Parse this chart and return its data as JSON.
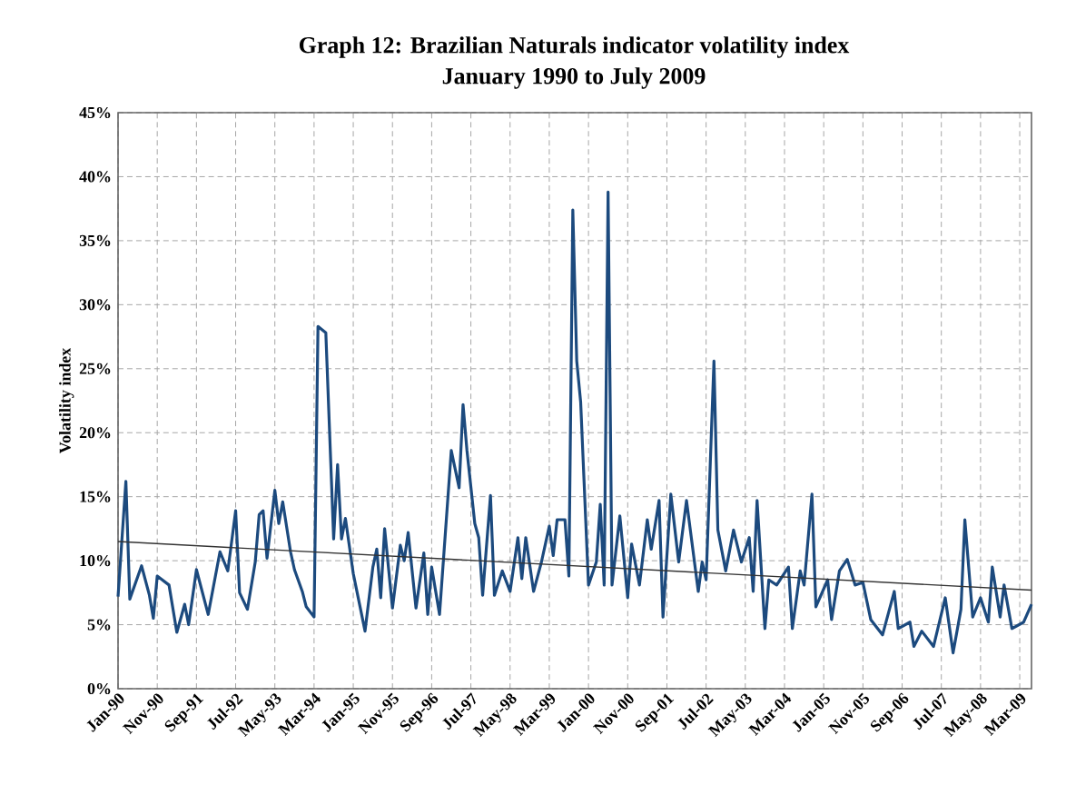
{
  "chart_data": {
    "type": "line",
    "title": "Graph 12: Brazilian Naturals indicator volatility index",
    "subtitle": "January 1990 to July 2009",
    "ylabel": "Volatility index",
    "xlim": [
      "1990-01",
      "2009-06"
    ],
    "ylim": [
      0,
      45
    ],
    "yticks": [
      {
        "value": 0,
        "label": "0%"
      },
      {
        "value": 5,
        "label": "5%"
      },
      {
        "value": 10,
        "label": "10%"
      },
      {
        "value": 15,
        "label": "15%"
      },
      {
        "value": 20,
        "label": "20%"
      },
      {
        "value": 25,
        "label": "25%"
      },
      {
        "value": 30,
        "label": "30%"
      },
      {
        "value": 35,
        "label": "35%"
      },
      {
        "value": 40,
        "label": "40%"
      },
      {
        "value": 45,
        "label": "45%"
      }
    ],
    "xticks": [
      {
        "value": "1990-01",
        "label": "Jan-90"
      },
      {
        "value": "1990-11",
        "label": "Nov-90"
      },
      {
        "value": "1991-09",
        "label": "Sep-91"
      },
      {
        "value": "1992-07",
        "label": "Jul-92"
      },
      {
        "value": "1993-05",
        "label": "May-93"
      },
      {
        "value": "1994-03",
        "label": "Mar-94"
      },
      {
        "value": "1995-01",
        "label": "Jan-95"
      },
      {
        "value": "1995-11",
        "label": "Nov-95"
      },
      {
        "value": "1996-09",
        "label": "Sep-96"
      },
      {
        "value": "1997-07",
        "label": "Jul-97"
      },
      {
        "value": "1998-05",
        "label": "May-98"
      },
      {
        "value": "1999-03",
        "label": "Mar-99"
      },
      {
        "value": "2000-01",
        "label": "Jan-00"
      },
      {
        "value": "2000-11",
        "label": "Nov-00"
      },
      {
        "value": "2001-09",
        "label": "Sep-01"
      },
      {
        "value": "2002-07",
        "label": "Jul-02"
      },
      {
        "value": "2003-05",
        "label": "May-03"
      },
      {
        "value": "2004-03",
        "label": "Mar-04"
      },
      {
        "value": "2005-01",
        "label": "Jan-05"
      },
      {
        "value": "2005-11",
        "label": "Nov-05"
      },
      {
        "value": "2006-09",
        "label": "Sep-06"
      },
      {
        "value": "2007-07",
        "label": "Jul-07"
      },
      {
        "value": "2008-05",
        "label": "May-08"
      },
      {
        "value": "2009-03",
        "label": "Mar-09"
      }
    ],
    "grid": true,
    "marker": "none",
    "line_style": "solid",
    "series": [
      {
        "color": "#1c4a7e",
        "x": [
          "1990-01",
          "1990-03",
          "1990-04",
          "1990-07",
          "1990-09",
          "1990-10",
          "1990-11",
          "1991-02",
          "1991-04",
          "1991-06",
          "1991-07",
          "1991-09",
          "1991-12",
          "1992-03",
          "1992-05",
          "1992-07",
          "1992-08",
          "1992-10",
          "1992-12",
          "1993-01",
          "1993-02",
          "1993-03",
          "1993-05",
          "1993-06",
          "1993-07",
          "1993-09",
          "1993-10",
          "1993-12",
          "1994-01",
          "1994-03",
          "1994-04",
          "1994-06",
          "1994-08",
          "1994-09",
          "1994-10",
          "1994-11",
          "1995-01",
          "1995-02",
          "1995-04",
          "1995-06",
          "1995-07",
          "1995-08",
          "1995-09",
          "1995-11",
          "1996-01",
          "1996-02",
          "1996-03",
          "1996-05",
          "1996-07",
          "1996-08",
          "1996-09",
          "1996-11",
          "1997-02",
          "1997-04",
          "1997-05",
          "1997-06",
          "1997-08",
          "1997-09",
          "1997-10",
          "1997-12",
          "1998-01",
          "1998-03",
          "1998-05",
          "1998-07",
          "1998-08",
          "1998-09",
          "1998-11",
          "1999-01",
          "1999-03",
          "1999-04",
          "1999-05",
          "1999-07",
          "1999-08",
          "1999-09",
          "1999-10",
          "1999-11",
          "2000-01",
          "2000-03",
          "2000-04",
          "2000-05",
          "2000-06",
          "2000-07",
          "2000-09",
          "2000-11",
          "2000-12",
          "2001-02",
          "2001-04",
          "2001-05",
          "2001-07",
          "2001-08",
          "2001-10",
          "2001-12",
          "2002-02",
          "2002-05",
          "2002-06",
          "2002-07",
          "2002-09",
          "2002-10",
          "2002-12",
          "2003-02",
          "2003-04",
          "2003-06",
          "2003-07",
          "2003-08",
          "2003-10",
          "2003-11",
          "2004-01",
          "2004-04",
          "2004-05",
          "2004-07",
          "2004-08",
          "2004-10",
          "2004-11",
          "2005-02",
          "2005-03",
          "2005-05",
          "2005-07",
          "2005-09",
          "2005-11",
          "2006-01",
          "2006-04",
          "2006-07",
          "2006-08",
          "2006-11",
          "2006-12",
          "2007-02",
          "2007-05",
          "2007-08",
          "2007-10",
          "2007-12",
          "2008-01",
          "2008-03",
          "2008-05",
          "2008-07",
          "2008-08",
          "2008-10",
          "2008-11",
          "2009-01",
          "2009-04",
          "2009-06"
        ],
        "values": [
          7.2,
          16.2,
          7.0,
          9.6,
          7.3,
          5.5,
          8.8,
          8.1,
          4.4,
          6.6,
          5.0,
          9.3,
          5.8,
          10.7,
          9.2,
          13.9,
          7.5,
          6.2,
          9.9,
          13.6,
          13.9,
          10.2,
          15.5,
          12.9,
          14.6,
          10.7,
          9.3,
          7.6,
          6.4,
          5.6,
          28.3,
          27.8,
          11.7,
          17.5,
          11.7,
          13.3,
          9.0,
          7.5,
          4.5,
          9.5,
          10.9,
          7.1,
          12.5,
          6.3,
          11.2,
          10.0,
          12.2,
          6.3,
          10.6,
          5.8,
          9.5,
          5.8,
          18.6,
          15.7,
          22.2,
          18.6,
          12.9,
          11.8,
          7.3,
          15.1,
          7.3,
          9.2,
          7.6,
          11.8,
          8.6,
          11.8,
          7.6,
          9.9,
          12.7,
          10.4,
          13.2,
          13.2,
          8.8,
          37.4,
          25.6,
          22.4,
          8.1,
          9.9,
          14.4,
          8.1,
          38.8,
          8.1,
          13.5,
          7.1,
          11.3,
          8.1,
          13.2,
          10.9,
          14.7,
          5.6,
          15.2,
          9.9,
          14.7,
          7.6,
          9.9,
          8.5,
          25.6,
          12.4,
          9.2,
          12.4,
          9.9,
          11.8,
          7.6,
          14.7,
          4.7,
          8.5,
          8.1,
          9.5,
          4.7,
          9.2,
          8.1,
          15.2,
          6.4,
          8.5,
          5.4,
          9.2,
          10.1,
          8.1,
          8.3,
          5.4,
          4.2,
          7.6,
          4.7,
          5.2,
          3.3,
          4.5,
          3.3,
          7.1,
          2.8,
          6.2,
          13.2,
          5.6,
          7.1,
          5.2,
          9.5,
          5.6,
          8.1,
          4.7,
          5.2,
          6.6
        ]
      },
      {
        "type": "line",
        "color": "#333333",
        "x": [
          "1990-01",
          "2009-06"
        ],
        "values": [
          11.5,
          7.7
        ]
      }
    ]
  }
}
